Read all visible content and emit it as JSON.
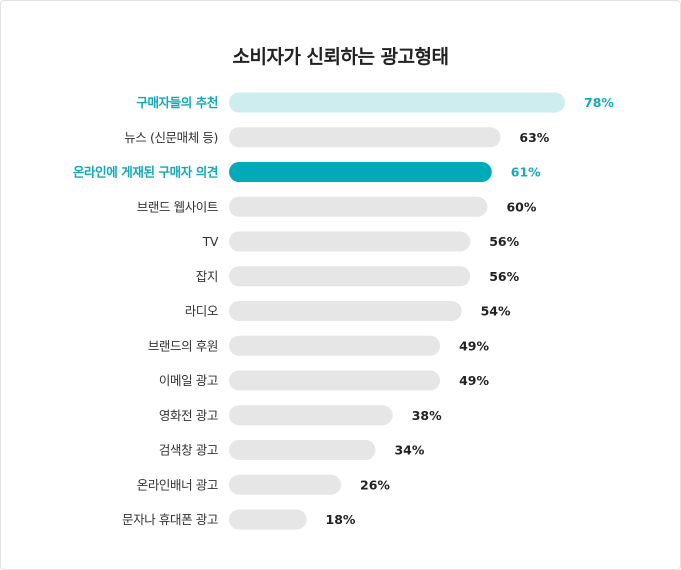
{
  "chart_data": {
    "type": "bar",
    "orientation": "horizontal",
    "title": "소비자가 신뢰하는 광고형태",
    "categories": [
      "구매자들의 추천",
      "뉴스 (신문매체 등)",
      "온라인에 게재된 구매자 의견",
      "브랜드 웹사이트",
      "TV",
      "잡지",
      "라디오",
      "브랜드의 후원",
      "이메일 광고",
      "영화전 광고",
      "검색창 광고",
      "온라인배너 광고",
      "문자나 휴대폰 광고"
    ],
    "values": [
      78,
      63,
      61,
      60,
      56,
      56,
      54,
      49,
      49,
      38,
      34,
      26,
      18
    ],
    "value_labels": [
      "78%",
      "63%",
      "61%",
      "60%",
      "56%",
      "56%",
      "54%",
      "49%",
      "49%",
      "38%",
      "34%",
      "26%",
      "18%"
    ],
    "highlighted": [
      0,
      2
    ],
    "xlim": [
      0,
      78
    ],
    "grid": false,
    "legend": "none"
  },
  "colors": {
    "default_bar": "#e6e6e6",
    "highlight_light_bar": "#cdedef",
    "highlight_dark_bar": "#00aab9",
    "highlight_text": "#12aab8",
    "text": "#333333"
  }
}
